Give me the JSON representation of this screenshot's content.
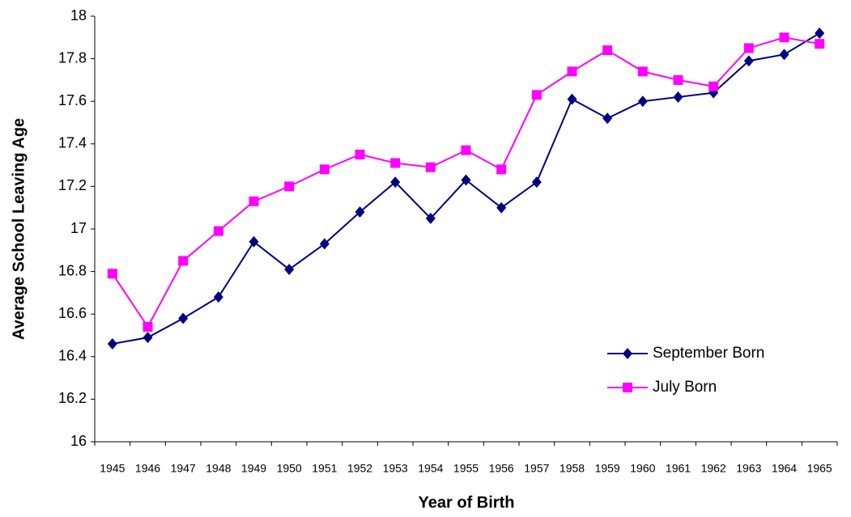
{
  "chart_data": {
    "type": "line",
    "x_label": "Year of Birth",
    "y_label": "Average School Leaving Age",
    "categories": [
      "1945",
      "1946",
      "1947",
      "1948",
      "1949",
      "1950",
      "1951",
      "1952",
      "1953",
      "1954",
      "1955",
      "1956",
      "1957",
      "1958",
      "1959",
      "1960",
      "1961",
      "1962",
      "1963",
      "1964",
      "1965"
    ],
    "series": [
      {
        "name": "September Born",
        "color": "#000080",
        "marker": "diamond",
        "values": [
          16.46,
          16.49,
          16.58,
          16.68,
          16.94,
          16.81,
          16.93,
          17.08,
          17.22,
          17.05,
          17.23,
          17.1,
          17.22,
          17.61,
          17.52,
          17.6,
          17.62,
          17.64,
          17.79,
          17.82,
          17.92
        ]
      },
      {
        "name": "July Born",
        "color": "#ff00ff",
        "marker": "square",
        "values": [
          16.79,
          16.54,
          16.85,
          16.99,
          17.13,
          17.2,
          17.28,
          17.35,
          17.31,
          17.29,
          17.37,
          17.28,
          17.63,
          17.74,
          17.84,
          17.74,
          17.7,
          17.67,
          17.85,
          17.9,
          17.87
        ]
      }
    ],
    "ylim": [
      16,
      18
    ],
    "yticks": [
      16,
      16.2,
      16.4,
      16.6,
      16.8,
      17,
      17.2,
      17.4,
      17.6,
      17.8,
      18
    ],
    "grid": false,
    "legend": "right"
  }
}
